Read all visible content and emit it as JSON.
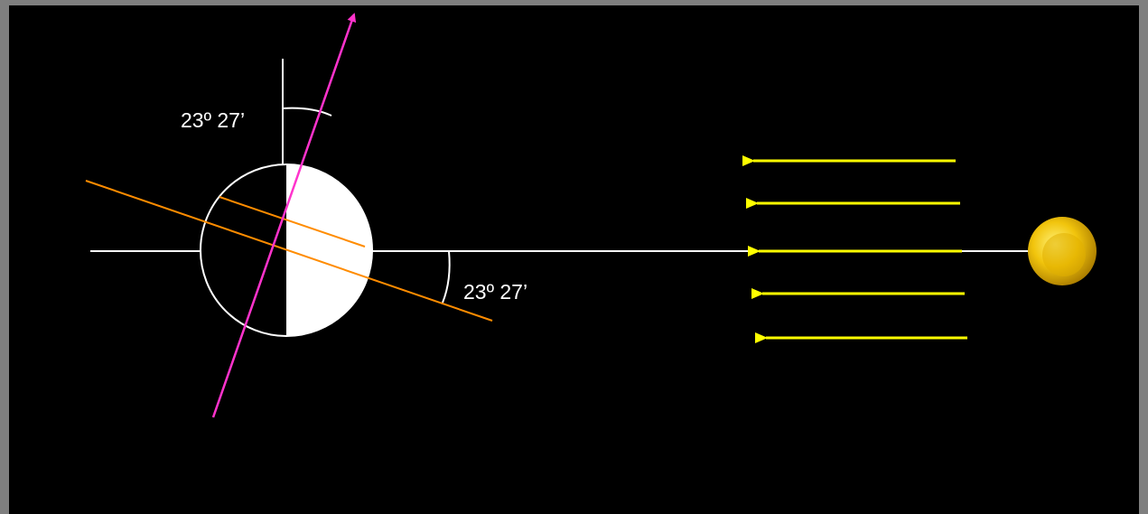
{
  "labels": [
    "23º 27’",
    "23º 27’"
  ]
}
